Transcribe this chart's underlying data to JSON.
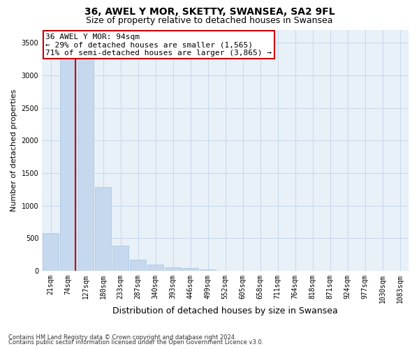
{
  "title1": "36, AWEL Y MOR, SKETTY, SWANSEA, SA2 9FL",
  "title2": "Size of property relative to detached houses in Swansea",
  "xlabel": "Distribution of detached houses by size in Swansea",
  "ylabel": "Number of detached properties",
  "footer1": "Contains HM Land Registry data © Crown copyright and database right 2024.",
  "footer2": "Contains public sector information licensed under the Open Government Licence v3.0.",
  "annotation_line1": "36 AWEL Y MOR: 94sqm",
  "annotation_line2": "← 29% of detached houses are smaller (1,565)",
  "annotation_line3": "71% of semi-detached houses are larger (3,865) →",
  "categories": [
    "21sqm",
    "74sqm",
    "127sqm",
    "180sqm",
    "233sqm",
    "287sqm",
    "340sqm",
    "393sqm",
    "446sqm",
    "499sqm",
    "552sqm",
    "605sqm",
    "658sqm",
    "711sqm",
    "764sqm",
    "818sqm",
    "871sqm",
    "924sqm",
    "977sqm",
    "1030sqm",
    "1083sqm"
  ],
  "values": [
    580,
    3380,
    3340,
    1280,
    390,
    170,
    95,
    55,
    40,
    25,
    4,
    1,
    0,
    0,
    0,
    0,
    0,
    0,
    0,
    0,
    0
  ],
  "bar_color": "#c5d8ed",
  "bar_edge_color": "#a8c4e0",
  "red_line_x": 1.42,
  "ylim": [
    0,
    3700
  ],
  "yticks": [
    0,
    500,
    1000,
    1500,
    2000,
    2500,
    3000,
    3500
  ],
  "grid_color": "#c8d8ea",
  "background_color": "#e8f0f8",
  "annotation_box_color": "#ffffff",
  "annotation_box_edge": "#cc0000",
  "title_fontsize": 10,
  "subtitle_fontsize": 9,
  "tick_fontsize": 7,
  "ylabel_fontsize": 8,
  "xlabel_fontsize": 9,
  "annotation_fontsize": 8
}
